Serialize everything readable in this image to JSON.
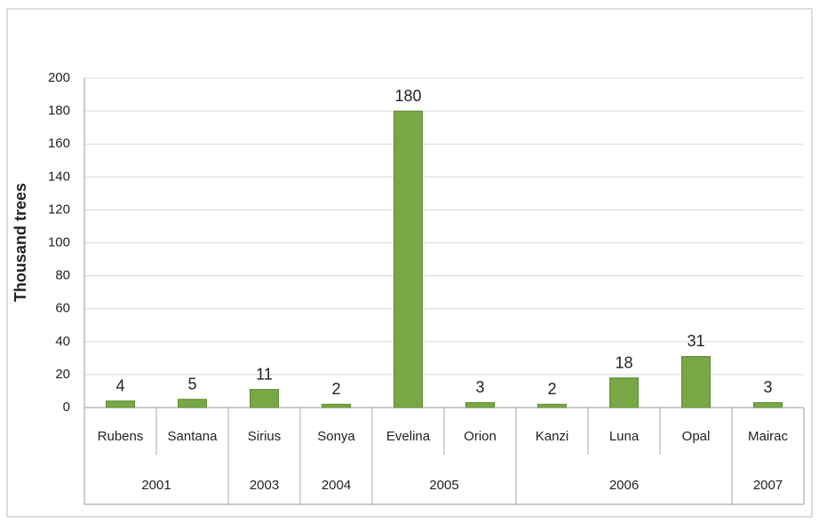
{
  "chart_data": {
    "type": "bar",
    "y_axis_label": "Thousand trees",
    "categories": [
      "Rubens",
      "Santana",
      "Sirius",
      "Sonya",
      "Evelina",
      "Orion",
      "Kanzi",
      "Luna",
      "Opal",
      "Mairac"
    ],
    "category_groups": [
      "2001",
      "2001",
      "2003",
      "2004",
      "2005",
      "2005",
      "2006",
      "2006",
      "2006",
      "2007"
    ],
    "values": [
      4,
      5,
      11,
      2,
      180,
      3,
      2,
      18,
      31,
      3
    ],
    "color": "#77a845",
    "ylim": [
      0,
      200
    ],
    "yticks": [
      0,
      20,
      40,
      60,
      80,
      100,
      120,
      140,
      160,
      180,
      200
    ],
    "grid": true
  }
}
